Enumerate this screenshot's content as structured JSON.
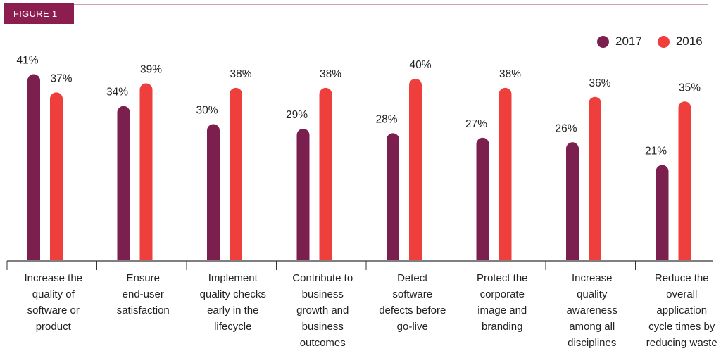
{
  "figure_label": "FIGURE 1",
  "colors": {
    "series_2017": "#7b1f4e",
    "series_2016": "#ee3f3c",
    "badge": "#8b1d4f",
    "rule": "#c9a0b4",
    "axis": "#333333"
  },
  "chart_data": {
    "type": "bar",
    "title": "",
    "xlabel": "",
    "ylabel": "",
    "ylim": [
      0,
      45
    ],
    "grid": false,
    "legend_position": "top-right",
    "categories": [
      "Increase the quality of software or product",
      "Ensure end-user satisfaction",
      "Implement quality checks early in the lifecycle",
      "Contribute to business growth and business outcomes",
      "Detect software defects before go-live",
      "Protect the corporate image and branding",
      "Increase quality awareness among all disciplines",
      "Reduce the overall application cycle times by reducing waste"
    ],
    "category_lines": [
      [
        "Increase the",
        "quality of",
        "software or",
        "product"
      ],
      [
        "Ensure",
        "end-user",
        "satisfaction"
      ],
      [
        "Implement",
        "quality checks",
        "early in the",
        "lifecycle"
      ],
      [
        "Contribute to",
        "business",
        "growth and",
        "business",
        "outcomes"
      ],
      [
        "Detect",
        "software",
        "defects before",
        "go-live"
      ],
      [
        "Protect the",
        "corporate",
        "image and",
        "branding"
      ],
      [
        "Increase",
        "quality",
        "awareness",
        "among all",
        "disciplines"
      ],
      [
        "Reduce the",
        "overall",
        "application",
        "cycle times by",
        "reducing waste"
      ]
    ],
    "series": [
      {
        "name": "2017",
        "values": [
          41,
          34,
          30,
          29,
          28,
          27,
          26,
          21
        ],
        "labels": [
          "41%",
          "34%",
          "30%",
          "29%",
          "28%",
          "27%",
          "26%",
          "21%"
        ]
      },
      {
        "name": "2016",
        "values": [
          37,
          39,
          38,
          38,
          40,
          38,
          36,
          35
        ],
        "labels": [
          "37%",
          "39%",
          "38%",
          "38%",
          "40%",
          "38%",
          "36%",
          "35%"
        ]
      }
    ]
  }
}
